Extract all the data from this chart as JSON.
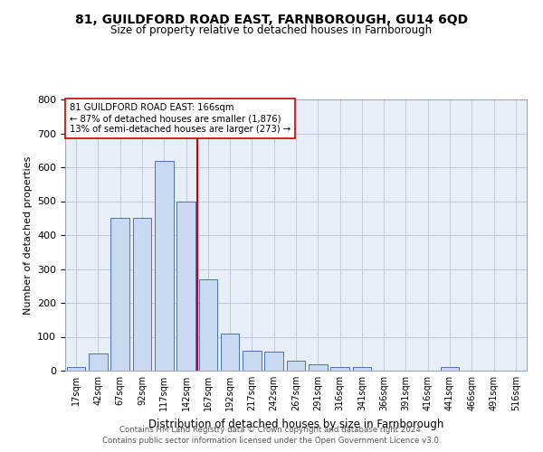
{
  "title_line1": "81, GUILDFORD ROAD EAST, FARNBOROUGH, GU14 6QD",
  "title_line2": "Size of property relative to detached houses in Farnborough",
  "xlabel": "Distribution of detached houses by size in Farnborough",
  "ylabel": "Number of detached properties",
  "bar_labels": [
    "17sqm",
    "42sqm",
    "67sqm",
    "92sqm",
    "117sqm",
    "142sqm",
    "167sqm",
    "192sqm",
    "217sqm",
    "242sqm",
    "267sqm",
    "291sqm",
    "316sqm",
    "341sqm",
    "366sqm",
    "391sqm",
    "416sqm",
    "441sqm",
    "466sqm",
    "491sqm",
    "516sqm"
  ],
  "bar_values": [
    10,
    50,
    450,
    450,
    620,
    500,
    270,
    110,
    60,
    55,
    30,
    20,
    10,
    10,
    0,
    0,
    0,
    10,
    0,
    0,
    0
  ],
  "bar_color": "#c9daf0",
  "bar_edgecolor": "#4472c4",
  "vline_color": "#cc0000",
  "annotation_line1": "81 GUILDFORD ROAD EAST: 166sqm",
  "annotation_line2": "← 87% of detached houses are smaller (1,876)",
  "annotation_line3": "13% of semi-detached houses are larger (273) →",
  "annotation_box_edgecolor": "#cc0000",
  "ylim": [
    0,
    800
  ],
  "yticks": [
    0,
    100,
    200,
    300,
    400,
    500,
    600,
    700,
    800
  ],
  "grid_color": "#c0c8d8",
  "footer_line1": "Contains HM Land Registry data © Crown copyright and database right 2024.",
  "footer_line2": "Contains public sector information licensed under the Open Government Licence v3.0.",
  "fig_facecolor": "#ffffff",
  "plot_background": "#e8eef8"
}
